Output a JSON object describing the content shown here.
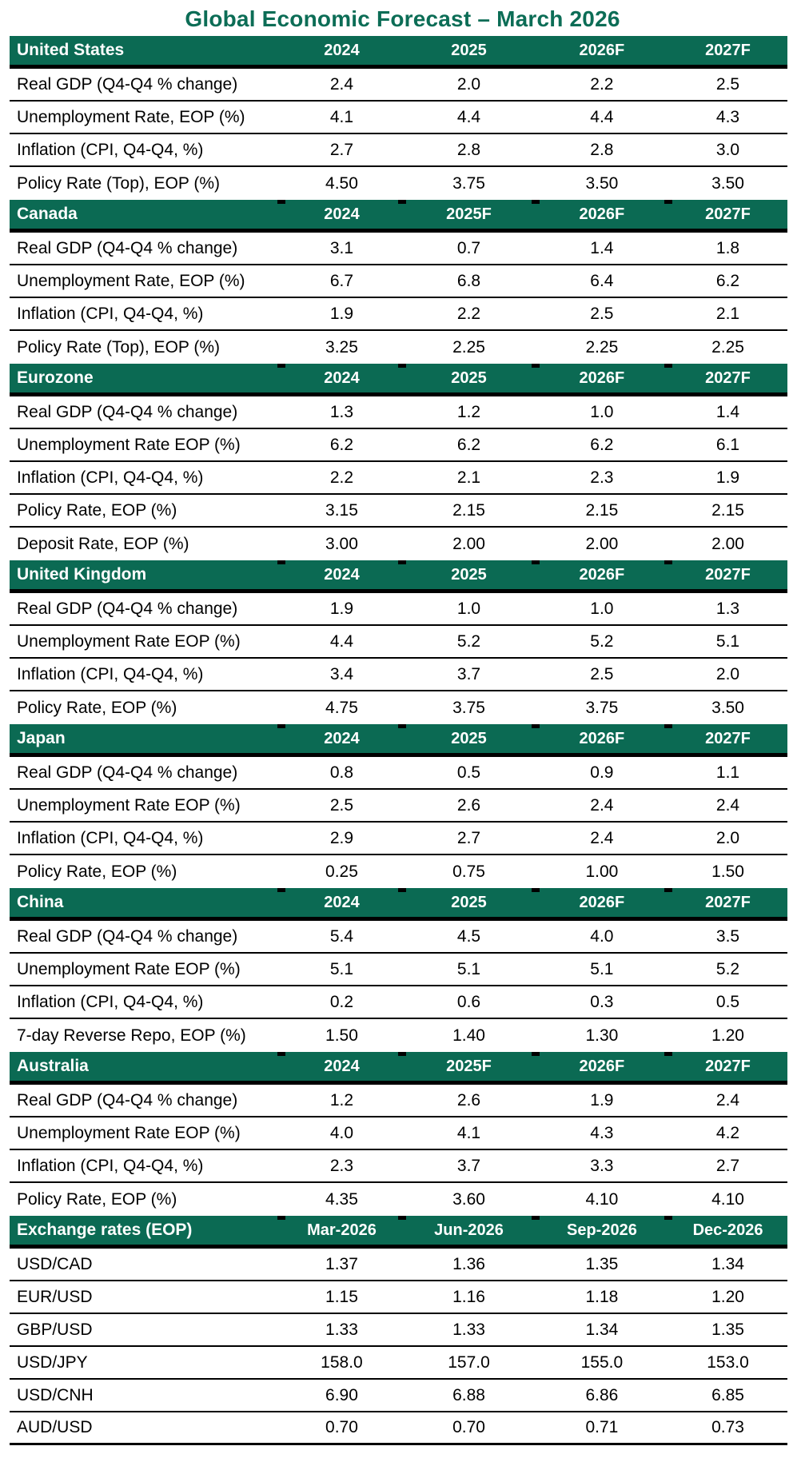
{
  "colors": {
    "header_green": "#0b6a53",
    "title_green": "#0c6d56",
    "header_text": "#ffffff",
    "rule_black": "#000000"
  },
  "chart_data": {
    "type": "table",
    "title": "Global Economic Forecast – March 2026",
    "sections": [
      {
        "name": "United States",
        "columns": [
          "2024",
          "2025",
          "2026F",
          "2027F"
        ],
        "rows": [
          {
            "label": "Real GDP (Q4-Q4 % change)",
            "values": [
              "2.4",
              "2.0",
              "2.2",
              "2.5"
            ]
          },
          {
            "label": "Unemployment Rate, EOP (%)",
            "values": [
              "4.1",
              "4.4",
              "4.4",
              "4.3"
            ]
          },
          {
            "label": "Inflation (CPI, Q4-Q4, %)",
            "values": [
              "2.7",
              "2.8",
              "2.8",
              "3.0"
            ]
          },
          {
            "label": "Policy Rate (Top), EOP (%)",
            "values": [
              "4.50",
              "3.75",
              "3.50",
              "3.50"
            ]
          }
        ]
      },
      {
        "name": "Canada",
        "columns": [
          "2024",
          "2025F",
          "2026F",
          "2027F"
        ],
        "rows": [
          {
            "label": "Real GDP (Q4-Q4 % change)",
            "values": [
              "3.1",
              "0.7",
              "1.4",
              "1.8"
            ]
          },
          {
            "label": "Unemployment Rate, EOP (%)",
            "values": [
              "6.7",
              "6.8",
              "6.4",
              "6.2"
            ]
          },
          {
            "label": "Inflation (CPI, Q4-Q4, %)",
            "values": [
              "1.9",
              "2.2",
              "2.5",
              "2.1"
            ]
          },
          {
            "label": "Policy Rate (Top), EOP (%)",
            "values": [
              "3.25",
              "2.25",
              "2.25",
              "2.25"
            ]
          }
        ]
      },
      {
        "name": "Eurozone",
        "columns": [
          "2024",
          "2025",
          "2026F",
          "2027F"
        ],
        "rows": [
          {
            "label": "Real GDP (Q4-Q4 % change)",
            "values": [
              "1.3",
              "1.2",
              "1.0",
              "1.4"
            ]
          },
          {
            "label": "Unemployment Rate EOP (%)",
            "values": [
              "6.2",
              "6.2",
              "6.2",
              "6.1"
            ]
          },
          {
            "label": "Inflation (CPI, Q4-Q4, %)",
            "values": [
              "2.2",
              "2.1",
              "2.3",
              "1.9"
            ]
          },
          {
            "label": "Policy Rate, EOP (%)",
            "values": [
              "3.15",
              "2.15",
              "2.15",
              "2.15"
            ]
          },
          {
            "label": "Deposit Rate, EOP (%)",
            "values": [
              "3.00",
              "2.00",
              "2.00",
              "2.00"
            ]
          }
        ]
      },
      {
        "name": "United Kingdom",
        "columns": [
          "2024",
          "2025",
          "2026F",
          "2027F"
        ],
        "rows": [
          {
            "label": "Real GDP (Q4-Q4 % change)",
            "values": [
              "1.9",
              "1.0",
              "1.0",
              "1.3"
            ]
          },
          {
            "label": "Unemployment Rate EOP (%)",
            "values": [
              "4.4",
              "5.2",
              "5.2",
              "5.1"
            ]
          },
          {
            "label": "Inflation (CPI, Q4-Q4, %)",
            "values": [
              "3.4",
              "3.7",
              "2.5",
              "2.0"
            ]
          },
          {
            "label": "Policy Rate, EOP (%)",
            "values": [
              "4.75",
              "3.75",
              "3.75",
              "3.50"
            ]
          }
        ]
      },
      {
        "name": "Japan",
        "columns": [
          "2024",
          "2025",
          "2026F",
          "2027F"
        ],
        "rows": [
          {
            "label": "Real GDP (Q4-Q4 % change)",
            "values": [
              "0.8",
              "0.5",
              "0.9",
              "1.1"
            ]
          },
          {
            "label": "Unemployment Rate EOP (%)",
            "values": [
              "2.5",
              "2.6",
              "2.4",
              "2.4"
            ]
          },
          {
            "label": "Inflation (CPI, Q4-Q4, %)",
            "values": [
              "2.9",
              "2.7",
              "2.4",
              "2.0"
            ]
          },
          {
            "label": "Policy Rate, EOP (%)",
            "values": [
              "0.25",
              "0.75",
              "1.00",
              "1.50"
            ]
          }
        ]
      },
      {
        "name": "China",
        "columns": [
          "2024",
          "2025",
          "2026F",
          "2027F"
        ],
        "rows": [
          {
            "label": "Real GDP (Q4-Q4 % change)",
            "values": [
              "5.4",
              "4.5",
              "4.0",
              "3.5"
            ]
          },
          {
            "label": "Unemployment Rate EOP (%)",
            "values": [
              "5.1",
              "5.1",
              "5.1",
              "5.2"
            ]
          },
          {
            "label": "Inflation (CPI, Q4-Q4, %)",
            "values": [
              "0.2",
              "0.6",
              "0.3",
              "0.5"
            ]
          },
          {
            "label": "7-day Reverse Repo, EOP (%)",
            "values": [
              "1.50",
              "1.40",
              "1.30",
              "1.20"
            ]
          }
        ]
      },
      {
        "name": "Australia",
        "columns": [
          "2024",
          "2025F",
          "2026F",
          "2027F"
        ],
        "rows": [
          {
            "label": "Real GDP (Q4-Q4 % change)",
            "values": [
              "1.2",
              "2.6",
              "1.9",
              "2.4"
            ]
          },
          {
            "label": "Unemployment Rate EOP (%)",
            "values": [
              "4.0",
              "4.1",
              "4.3",
              "4.2"
            ]
          },
          {
            "label": "Inflation (CPI, Q4-Q4, %)",
            "values": [
              "2.3",
              "3.7",
              "3.3",
              "2.7"
            ]
          },
          {
            "label": "Policy Rate, EOP (%)",
            "values": [
              "4.35",
              "3.60",
              "4.10",
              "4.10"
            ]
          }
        ]
      },
      {
        "name": "Exchange rates (EOP)",
        "columns": [
          "Mar-2026",
          "Jun-2026",
          "Sep-2026",
          "Dec-2026"
        ],
        "rows": [
          {
            "label": "USD/CAD",
            "values": [
              "1.37",
              "1.36",
              "1.35",
              "1.34"
            ]
          },
          {
            "label": "EUR/USD",
            "values": [
              "1.15",
              "1.16",
              "1.18",
              "1.20"
            ]
          },
          {
            "label": "GBP/USD",
            "values": [
              "1.33",
              "1.33",
              "1.34",
              "1.35"
            ]
          },
          {
            "label": "USD/JPY",
            "values": [
              "158.0",
              "157.0",
              "155.0",
              "153.0"
            ]
          },
          {
            "label": "USD/CNH",
            "values": [
              "6.90",
              "6.88",
              "6.86",
              "6.85"
            ]
          },
          {
            "label": "AUD/USD",
            "values": [
              "0.70",
              "0.70",
              "0.71",
              "0.73"
            ]
          }
        ]
      }
    ]
  }
}
